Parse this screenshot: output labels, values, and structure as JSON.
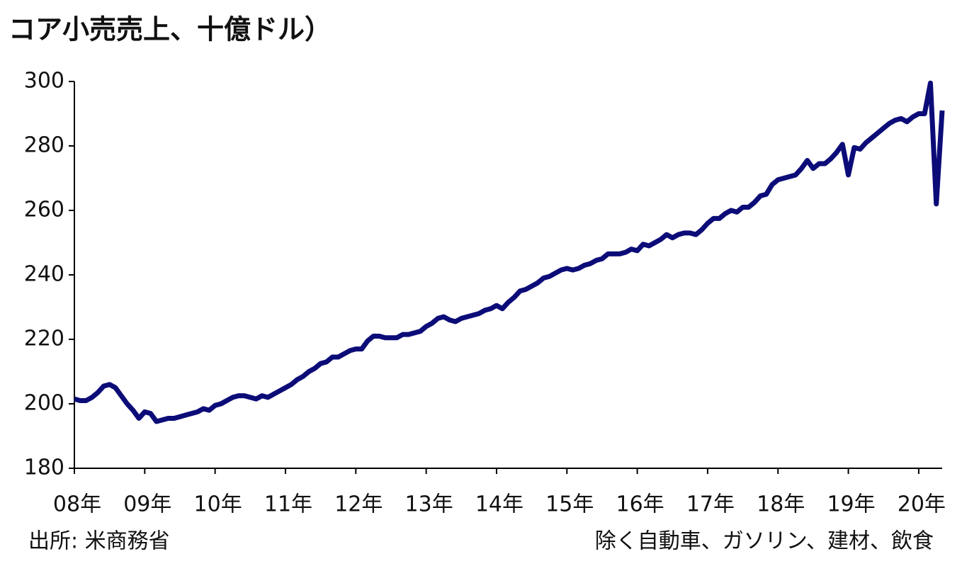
{
  "chart_data": {
    "type": "line",
    "title": "コア小売売上、十億ドル）",
    "source": "出所: 米商務省",
    "note": "除く自動車、ガソリン、建材、飲食",
    "categories": [
      "08年",
      null,
      null,
      null,
      null,
      null,
      null,
      null,
      null,
      null,
      null,
      null,
      "09年",
      null,
      null,
      null,
      null,
      null,
      null,
      null,
      null,
      null,
      null,
      null,
      "10年",
      null,
      null,
      null,
      null,
      null,
      null,
      null,
      null,
      null,
      null,
      null,
      "11年",
      null,
      null,
      null,
      null,
      null,
      null,
      null,
      null,
      null,
      null,
      null,
      "12年",
      null,
      null,
      null,
      null,
      null,
      null,
      null,
      null,
      null,
      null,
      null,
      "13年",
      null,
      null,
      null,
      null,
      null,
      null,
      null,
      null,
      null,
      null,
      null,
      "14年",
      null,
      null,
      null,
      null,
      null,
      null,
      null,
      null,
      null,
      null,
      null,
      "15年",
      null,
      null,
      null,
      null,
      null,
      null,
      null,
      null,
      null,
      null,
      null,
      "16年",
      null,
      null,
      null,
      null,
      null,
      null,
      null,
      null,
      null,
      null,
      null,
      "17年",
      null,
      null,
      null,
      null,
      null,
      null,
      null,
      null,
      null,
      null,
      null,
      "18年",
      null,
      null,
      null,
      null,
      null,
      null,
      null,
      null,
      null,
      null,
      null,
      "19年",
      null,
      null,
      null,
      null,
      null,
      null,
      null,
      null,
      null,
      null,
      null,
      "20年",
      null,
      null,
      null,
      null
    ],
    "series": [
      {
        "name": "コア小売売上",
        "color": "#0c0c78",
        "values": [
          201.5,
          201,
          201,
          202,
          203.5,
          205.5,
          206,
          205,
          202.5,
          200,
          198,
          195.5,
          197.5,
          197,
          194.5,
          195,
          195.5,
          195.5,
          196,
          196.5,
          197,
          197.5,
          198.5,
          198,
          199.5,
          200,
          201,
          202,
          202.5,
          202.5,
          202,
          201.5,
          202.5,
          202,
          203,
          204,
          205,
          206,
          207.5,
          208.5,
          210,
          211,
          212.5,
          213,
          214.5,
          214.5,
          215.5,
          216.5,
          217,
          217,
          219.5,
          221,
          221,
          220.5,
          220.5,
          220.5,
          221.5,
          221.5,
          222,
          222.5,
          224,
          225,
          226.5,
          227,
          226,
          225.5,
          226.5,
          227,
          227.5,
          228,
          229,
          229.5,
          230.5,
          229.5,
          231.5,
          233,
          235,
          235.5,
          236.5,
          237.5,
          239,
          239.5,
          240.5,
          241.5,
          242,
          241.5,
          242,
          243,
          243.5,
          244.5,
          245,
          246.5,
          246.5,
          246.5,
          247,
          248,
          247.5,
          249.5,
          249,
          250,
          251,
          252.5,
          251.5,
          252.5,
          253,
          253,
          252.5,
          254,
          256,
          257.5,
          257.5,
          259,
          260,
          259.5,
          261,
          261,
          262.5,
          264.5,
          265,
          268,
          269.5,
          270,
          270.5,
          271,
          273,
          275.5,
          273,
          274.5,
          274.5,
          276,
          278,
          280.5,
          271,
          279.5,
          279,
          281,
          282.5,
          284,
          285.5,
          287,
          288,
          288.5,
          287.5,
          289,
          290,
          290,
          299.5,
          262,
          291
        ]
      }
    ],
    "ylim": [
      180,
      300
    ],
    "yticks": [
      180,
      200,
      220,
      240,
      260,
      280,
      300
    ]
  }
}
